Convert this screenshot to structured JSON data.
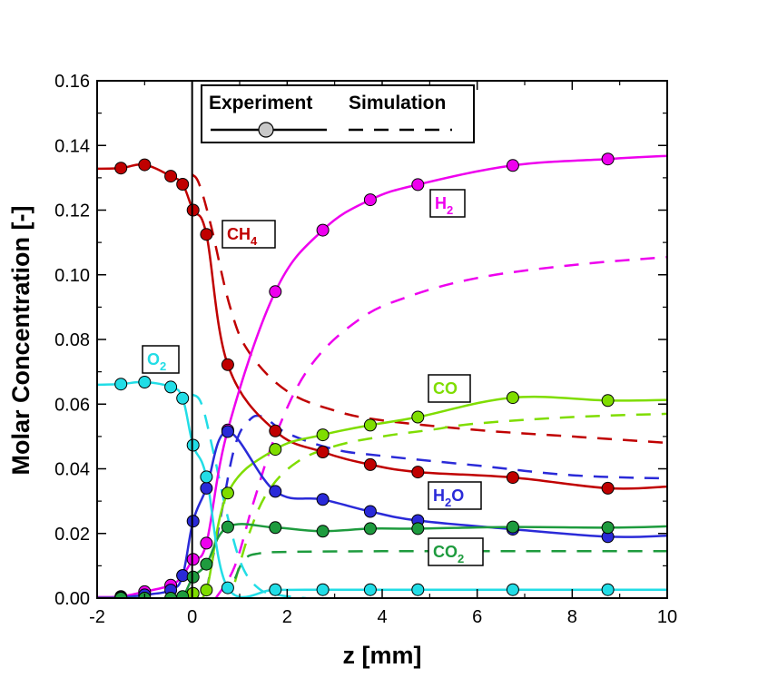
{
  "chart_data": {
    "type": "line",
    "xlabel": "z [mm]",
    "ylabel": "Molar Concentration  [-]",
    "xlim": [
      -2,
      10
    ],
    "ylim": [
      0,
      0.16
    ],
    "xticks": [
      "-2",
      "0",
      "2",
      "4",
      "6",
      "8",
      "10"
    ],
    "yticks": [
      "0.00",
      "0.02",
      "0.04",
      "0.06",
      "0.08",
      "0.10",
      "0.12",
      "0.14",
      "0.16"
    ],
    "grid": false,
    "legend": {
      "position": "top-inside",
      "experiment_label": "Experiment",
      "simulation_label": "Simulation"
    },
    "series": [
      {
        "label_main": "CH",
        "label_sub": "4",
        "color": "#c00000",
        "experiment": [
          [
            -1.5,
            0.133
          ],
          [
            -1.0,
            0.134
          ],
          [
            -0.45,
            0.1305
          ],
          [
            -0.2,
            0.128
          ],
          [
            0.02,
            0.12
          ],
          [
            0.3,
            0.1125
          ],
          [
            0.75,
            0.0722
          ],
          [
            1.75,
            0.0517
          ],
          [
            2.75,
            0.0452
          ],
          [
            3.75,
            0.0413
          ],
          [
            4.75,
            0.039
          ],
          [
            6.75,
            0.0373
          ],
          [
            8.75,
            0.034
          ]
        ],
        "experiment_line": [
          [
            -2,
            0.1328
          ],
          [
            -1.5,
            0.133
          ],
          [
            -1.0,
            0.134
          ],
          [
            -0.45,
            0.1305
          ],
          [
            -0.2,
            0.128
          ],
          [
            0.02,
            0.12
          ],
          [
            0.3,
            0.1125
          ],
          [
            0.75,
            0.0722
          ],
          [
            1.75,
            0.0517
          ],
          [
            2.75,
            0.0452
          ],
          [
            3.75,
            0.0413
          ],
          [
            4.75,
            0.039
          ],
          [
            6.75,
            0.0373
          ],
          [
            8.75,
            0.034
          ],
          [
            10,
            0.0345
          ]
        ],
        "simulation": [
          [
            0.0,
            0.131
          ],
          [
            0.15,
            0.128
          ],
          [
            0.4,
            0.115
          ],
          [
            0.8,
            0.09
          ],
          [
            1.2,
            0.076
          ],
          [
            2.0,
            0.064
          ],
          [
            3.0,
            0.058
          ],
          [
            4.0,
            0.055
          ],
          [
            6.0,
            0.052
          ],
          [
            8.0,
            0.05
          ],
          [
            10.0,
            0.048
          ]
        ]
      },
      {
        "label_main": "H",
        "label_sub": "2",
        "color": "#ee00ee",
        "experiment": [
          [
            -1.5,
            0.0005
          ],
          [
            -1.0,
            0.002
          ],
          [
            -0.45,
            0.004
          ],
          [
            -0.2,
            0.007
          ],
          [
            0.02,
            0.012
          ],
          [
            0.3,
            0.017
          ],
          [
            0.75,
            0.052
          ],
          [
            1.75,
            0.0948
          ],
          [
            2.75,
            0.1138
          ],
          [
            3.75,
            0.1232
          ],
          [
            4.75,
            0.1279
          ],
          [
            6.75,
            0.1338
          ],
          [
            8.75,
            0.1358
          ]
        ],
        "experiment_line": [
          [
            -2,
            0.0003
          ],
          [
            -1.5,
            0.0005
          ],
          [
            -1.0,
            0.002
          ],
          [
            -0.45,
            0.004
          ],
          [
            -0.2,
            0.007
          ],
          [
            0.02,
            0.012
          ],
          [
            0.3,
            0.017
          ],
          [
            0.75,
            0.052
          ],
          [
            1.75,
            0.0948
          ],
          [
            2.75,
            0.1138
          ],
          [
            3.75,
            0.1232
          ],
          [
            4.75,
            0.1279
          ],
          [
            6.75,
            0.1338
          ],
          [
            8.75,
            0.1358
          ],
          [
            10,
            0.1368
          ]
        ],
        "simulation": [
          [
            0.5,
            0.0
          ],
          [
            0.9,
            0.01
          ],
          [
            1.3,
            0.03
          ],
          [
            1.8,
            0.052
          ],
          [
            2.5,
            0.072
          ],
          [
            3.5,
            0.086
          ],
          [
            4.5,
            0.093
          ],
          [
            6.0,
            0.099
          ],
          [
            8.0,
            0.103
          ],
          [
            10.0,
            0.1055
          ]
        ]
      },
      {
        "label_main": "CO",
        "label_sub": "",
        "color": "#7fdd00",
        "experiment": [
          [
            0.02,
            0.0015
          ],
          [
            0.3,
            0.0025
          ],
          [
            0.75,
            0.0325
          ],
          [
            1.75,
            0.046
          ],
          [
            2.75,
            0.0505
          ],
          [
            3.75,
            0.0535
          ],
          [
            4.75,
            0.056
          ],
          [
            6.75,
            0.062
          ],
          [
            8.75,
            0.0611
          ]
        ],
        "experiment_line": [
          [
            0.02,
            0.0015
          ],
          [
            0.3,
            0.0025
          ],
          [
            0.75,
            0.0325
          ],
          [
            1.75,
            0.046
          ],
          [
            2.75,
            0.0505
          ],
          [
            3.75,
            0.0535
          ],
          [
            4.75,
            0.056
          ],
          [
            6.75,
            0.062
          ],
          [
            8.75,
            0.0611
          ],
          [
            10,
            0.0613
          ]
        ],
        "simulation": [
          [
            0.9,
            0.005
          ],
          [
            1.2,
            0.02
          ],
          [
            1.6,
            0.033
          ],
          [
            2.2,
            0.042
          ],
          [
            3.0,
            0.047
          ],
          [
            4.0,
            0.05
          ],
          [
            5.0,
            0.052
          ],
          [
            6.0,
            0.054
          ],
          [
            8.0,
            0.056
          ],
          [
            10.0,
            0.057
          ]
        ]
      },
      {
        "label_main": "H",
        "label_sub": "2",
        "label_tail": "O",
        "color": "#2a2ad8",
        "experiment": [
          [
            -1.5,
            0.0002
          ],
          [
            -1.0,
            0.001
          ],
          [
            -0.45,
            0.0025
          ],
          [
            -0.2,
            0.007
          ],
          [
            0.02,
            0.0238
          ],
          [
            0.3,
            0.034
          ],
          [
            0.75,
            0.0515
          ],
          [
            1.75,
            0.033
          ],
          [
            2.75,
            0.0305
          ],
          [
            3.75,
            0.0268
          ],
          [
            4.75,
            0.024
          ],
          [
            6.75,
            0.0213
          ],
          [
            8.75,
            0.019
          ]
        ],
        "experiment_line": [
          [
            -2,
            0.0001
          ],
          [
            -1.5,
            0.0002
          ],
          [
            -1.0,
            0.001
          ],
          [
            -0.45,
            0.0025
          ],
          [
            -0.2,
            0.007
          ],
          [
            0.02,
            0.0238
          ],
          [
            0.3,
            0.034
          ],
          [
            0.75,
            0.0515
          ],
          [
            1.75,
            0.033
          ],
          [
            2.75,
            0.0305
          ],
          [
            3.75,
            0.0268
          ],
          [
            4.75,
            0.024
          ],
          [
            6.75,
            0.0213
          ],
          [
            8.75,
            0.019
          ],
          [
            10,
            0.0193
          ]
        ],
        "simulation": [
          [
            0.3,
            0.002
          ],
          [
            0.6,
            0.025
          ],
          [
            0.9,
            0.047
          ],
          [
            1.2,
            0.055
          ],
          [
            1.5,
            0.056
          ],
          [
            2.0,
            0.051
          ],
          [
            3.0,
            0.046
          ],
          [
            4.0,
            0.044
          ],
          [
            6.0,
            0.041
          ],
          [
            8.0,
            0.038
          ],
          [
            10.0,
            0.037
          ]
        ]
      },
      {
        "label_main": "CO",
        "label_sub": "2",
        "color": "#1e9b3e",
        "experiment": [
          [
            -1.5,
            0.0
          ],
          [
            -1.0,
            0.0
          ],
          [
            -0.45,
            0.0
          ],
          [
            -0.2,
            0.0005
          ],
          [
            0.02,
            0.0065
          ],
          [
            0.3,
            0.0105
          ],
          [
            0.75,
            0.022
          ],
          [
            1.75,
            0.0218
          ],
          [
            2.75,
            0.0207
          ],
          [
            3.75,
            0.0215
          ],
          [
            4.75,
            0.0215
          ],
          [
            6.75,
            0.022
          ],
          [
            8.75,
            0.0218
          ]
        ],
        "experiment_line": [
          [
            -2,
            0.0
          ],
          [
            -1.5,
            0.0
          ],
          [
            -1.0,
            0.0
          ],
          [
            -0.45,
            0.0
          ],
          [
            -0.2,
            0.0005
          ],
          [
            0.02,
            0.0065
          ],
          [
            0.3,
            0.0105
          ],
          [
            0.75,
            0.022
          ],
          [
            1.75,
            0.0218
          ],
          [
            2.75,
            0.0207
          ],
          [
            3.75,
            0.0215
          ],
          [
            4.75,
            0.0215
          ],
          [
            6.75,
            0.022
          ],
          [
            8.75,
            0.0218
          ],
          [
            10,
            0.0222
          ]
        ],
        "simulation": [
          [
            0.9,
            0.006
          ],
          [
            1.1,
            0.012
          ],
          [
            1.4,
            0.0138
          ],
          [
            2.0,
            0.0143
          ],
          [
            4.0,
            0.0145
          ],
          [
            6.0,
            0.0145
          ],
          [
            8.0,
            0.0145
          ],
          [
            10.0,
            0.0145
          ]
        ]
      },
      {
        "label_main": "O",
        "label_sub": "2",
        "color": "#22dde6",
        "experiment": [
          [
            -1.5,
            0.0662
          ],
          [
            -1.0,
            0.0668
          ],
          [
            -0.45,
            0.0653
          ],
          [
            -0.2,
            0.0618
          ],
          [
            0.02,
            0.0473
          ],
          [
            0.3,
            0.0375
          ],
          [
            0.75,
            0.0032
          ],
          [
            1.75,
            0.0026
          ],
          [
            2.75,
            0.0026
          ],
          [
            3.75,
            0.0026
          ],
          [
            4.75,
            0.0026
          ],
          [
            6.75,
            0.0026
          ],
          [
            8.75,
            0.0026
          ]
        ],
        "experiment_line": [
          [
            -2,
            0.066
          ],
          [
            -1.5,
            0.0662
          ],
          [
            -1.0,
            0.0668
          ],
          [
            -0.45,
            0.0653
          ],
          [
            -0.2,
            0.0618
          ],
          [
            0.02,
            0.0473
          ],
          [
            0.3,
            0.0375
          ],
          [
            0.75,
            0.0032
          ],
          [
            1.75,
            0.0026
          ],
          [
            2.75,
            0.0026
          ],
          [
            3.75,
            0.0026
          ],
          [
            4.75,
            0.0026
          ],
          [
            6.75,
            0.0026
          ],
          [
            8.75,
            0.0026
          ],
          [
            10,
            0.0026
          ]
        ],
        "simulation": [
          [
            0.0,
            0.063
          ],
          [
            0.2,
            0.06
          ],
          [
            0.45,
            0.045
          ],
          [
            0.75,
            0.025
          ],
          [
            1.05,
            0.01
          ],
          [
            1.4,
            0.003
          ],
          [
            1.8,
            0.001
          ],
          [
            2.4,
            0.0
          ]
        ]
      }
    ]
  }
}
